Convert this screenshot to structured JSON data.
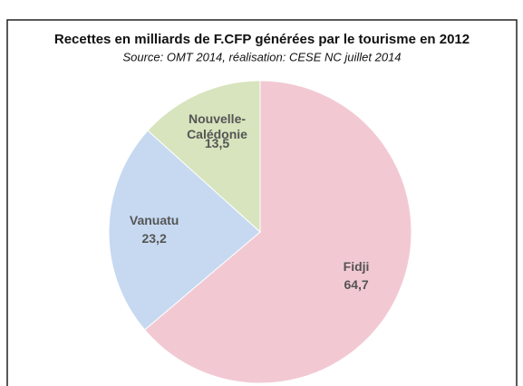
{
  "chart_data": {
    "type": "pie",
    "title": "Recettes en milliards de F.CFP générées par le tourisme en 2012",
    "subtitle": "Source: OMT 2014, réalisation: CESE NC juillet 2014",
    "categories": [
      "Fidji",
      "Vanuatu",
      "Nouvelle-Calédonie"
    ],
    "values": [
      64.7,
      23.2,
      13.5
    ],
    "value_labels": [
      "64,7",
      "23,2",
      "13,5"
    ],
    "colors": [
      "#f2c9d3",
      "#c6d9f1",
      "#d7e4bd"
    ]
  }
}
